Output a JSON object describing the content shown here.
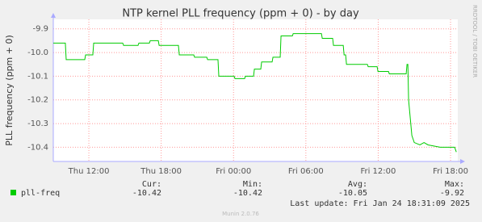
{
  "chart_data": {
    "type": "line",
    "title": "NTP kernel PLL frequency (ppm + 0) - by day",
    "y_label": "PLL frequency (ppm + 0)",
    "watermark": "RRDTOOL / TOBI OETIKER",
    "xlim": [
      9.05,
      42.6
    ],
    "xticks": [
      {
        "value": 12,
        "label": "Thu 12:00"
      },
      {
        "value": 18,
        "label": "Thu 18:00"
      },
      {
        "value": 24,
        "label": "Fri 00:00"
      },
      {
        "value": 30,
        "label": "Fri 06:00"
      },
      {
        "value": 36,
        "label": "Fri 12:00"
      },
      {
        "value": 42,
        "label": "Fri 18:00"
      }
    ],
    "ylim": [
      -10.46,
      -9.86
    ],
    "yticks": [
      -9.9,
      {
        "value": -10,
        "label": "-10.0"
      },
      -10.1,
      -10.2,
      -10.3,
      -10.4
    ],
    "grid": true,
    "x": [
      9.05,
      10.05,
      10.12,
      11.66,
      11.73,
      12.33,
      12.4,
      14.81,
      14.88,
      16.08,
      16.15,
      17.02,
      17.09,
      17.76,
      17.83,
      19.43,
      19.5,
      20.7,
      20.77,
      21.78,
      21.85,
      22.71,
      22.78,
      24.05,
      24.12,
      24.92,
      24.99,
      25.66,
      25.73,
      26.26,
      26.33,
      27.2,
      27.27,
      27.87,
      27.94,
      28.88,
      28.95,
      31.29,
      31.36,
      32.22,
      32.29,
      33.1,
      33.17,
      33.3,
      33.37,
      35.1,
      35.17,
      35.91,
      35.98,
      36.85,
      36.92,
      38.32,
      38.39,
      38.46,
      38.52,
      38.79,
      38.99,
      39.46,
      39.8,
      40.13,
      41.14,
      42.34,
      42.48
    ],
    "series": [
      {
        "name": "pll-freq",
        "color": "#00cc00",
        "values": [
          -9.96,
          -9.96,
          -10.03,
          -10.03,
          -10.01,
          -10.01,
          -9.96,
          -9.96,
          -9.97,
          -9.97,
          -9.96,
          -9.96,
          -9.95,
          -9.95,
          -9.97,
          -9.97,
          -10.01,
          -10.01,
          -10.02,
          -10.02,
          -10.03,
          -10.03,
          -10.1,
          -10.1,
          -10.11,
          -10.11,
          -10.1,
          -10.1,
          -10.07,
          -10.07,
          -10.04,
          -10.04,
          -10.02,
          -10.02,
          -9.93,
          -9.93,
          -9.92,
          -9.92,
          -9.94,
          -9.94,
          -9.97,
          -9.97,
          -10.01,
          -10.01,
          -10.05,
          -10.05,
          -10.06,
          -10.06,
          -10.08,
          -10.08,
          -10.09,
          -10.09,
          -10.05,
          -10.05,
          -10.2,
          -10.35,
          -10.38,
          -10.39,
          -10.38,
          -10.39,
          -10.4,
          -10.4,
          -10.42
        ]
      }
    ],
    "legend_stats": [
      {
        "label": "Cur:",
        "value": -10.42
      },
      {
        "label": "Min:",
        "value": -10.42
      },
      {
        "label": "Avg:",
        "value": -10.05
      },
      {
        "label": "Max:",
        "value": -9.92
      }
    ],
    "last_update": "Last update: Fri Jan 24 18:31:09 2025",
    "footer": "Munin 2.0.76"
  }
}
